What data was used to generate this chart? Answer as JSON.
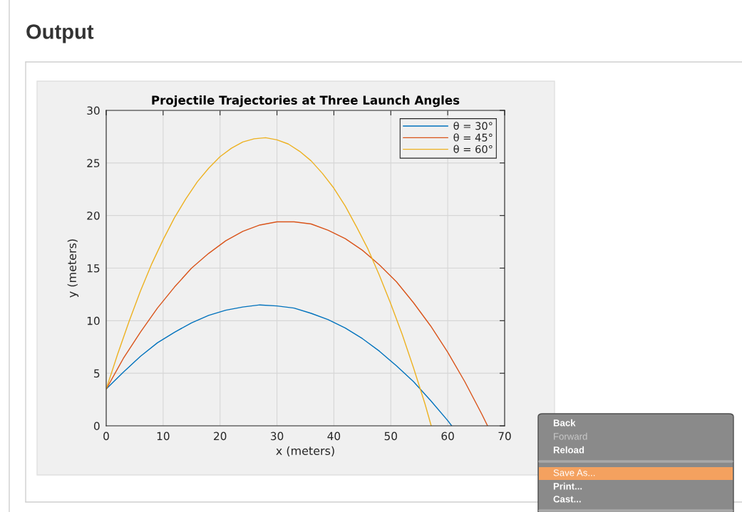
{
  "chart_data": {
    "type": "line",
    "title": "Projectile Trajectories at Three Launch Angles",
    "xlabel": "x (meters)",
    "ylabel": "y (meters)",
    "xlim": [
      0,
      70
    ],
    "ylim": [
      0,
      30
    ],
    "xticks": [
      0,
      10,
      20,
      30,
      40,
      50,
      60,
      70
    ],
    "yticks": [
      0,
      5,
      10,
      15,
      20,
      25,
      30
    ],
    "grid": true,
    "legend": "top right",
    "line_style": "solid",
    "annotations": [
      "Output",
      "Back",
      "Forward",
      "Reload",
      "Save As...",
      "Print...",
      "Cast..."
    ],
    "series": [
      {
        "name": "θ = 30°",
        "color": "#0072bd",
        "x": [
          0,
          3,
          6,
          9,
          12,
          15,
          18,
          21,
          24,
          27,
          30,
          33,
          36,
          39,
          42,
          45,
          48,
          51,
          54,
          57,
          60,
          60.7
        ],
        "values": [
          3.5,
          5.1,
          6.6,
          7.9,
          8.9,
          9.8,
          10.5,
          11.0,
          11.3,
          11.5,
          11.4,
          11.2,
          10.7,
          10.1,
          9.3,
          8.3,
          7.1,
          5.7,
          4.2,
          2.4,
          0.5,
          0
        ]
      },
      {
        "name": "θ = 45°",
        "color": "#d95319",
        "x": [
          0,
          3,
          6,
          9,
          12,
          15,
          18,
          21,
          24,
          27,
          30,
          33,
          36,
          39,
          42,
          45,
          48,
          51,
          54,
          57,
          60,
          63,
          66,
          67.0
        ],
        "values": [
          3.5,
          6.4,
          8.9,
          11.2,
          13.2,
          15.0,
          16.4,
          17.6,
          18.5,
          19.1,
          19.4,
          19.4,
          19.2,
          18.6,
          17.8,
          16.7,
          15.3,
          13.7,
          11.7,
          9.5,
          7.0,
          4.2,
          1.1,
          0
        ]
      },
      {
        "name": "θ = 60°",
        "color": "#edb120",
        "x": [
          0,
          2,
          4,
          6,
          8,
          10,
          12,
          14,
          16,
          18,
          20,
          22,
          24,
          26,
          28,
          30,
          32,
          34,
          36,
          38,
          40,
          42,
          44,
          46,
          48,
          50,
          52,
          54,
          56,
          57.1
        ],
        "values": [
          3.5,
          6.8,
          9.9,
          12.8,
          15.4,
          17.7,
          19.8,
          21.6,
          23.2,
          24.5,
          25.6,
          26.4,
          27.0,
          27.3,
          27.4,
          27.2,
          26.8,
          26.1,
          25.2,
          24.0,
          22.6,
          20.9,
          18.9,
          16.8,
          14.3,
          11.6,
          8.7,
          5.5,
          2.1,
          0
        ]
      }
    ]
  }
}
